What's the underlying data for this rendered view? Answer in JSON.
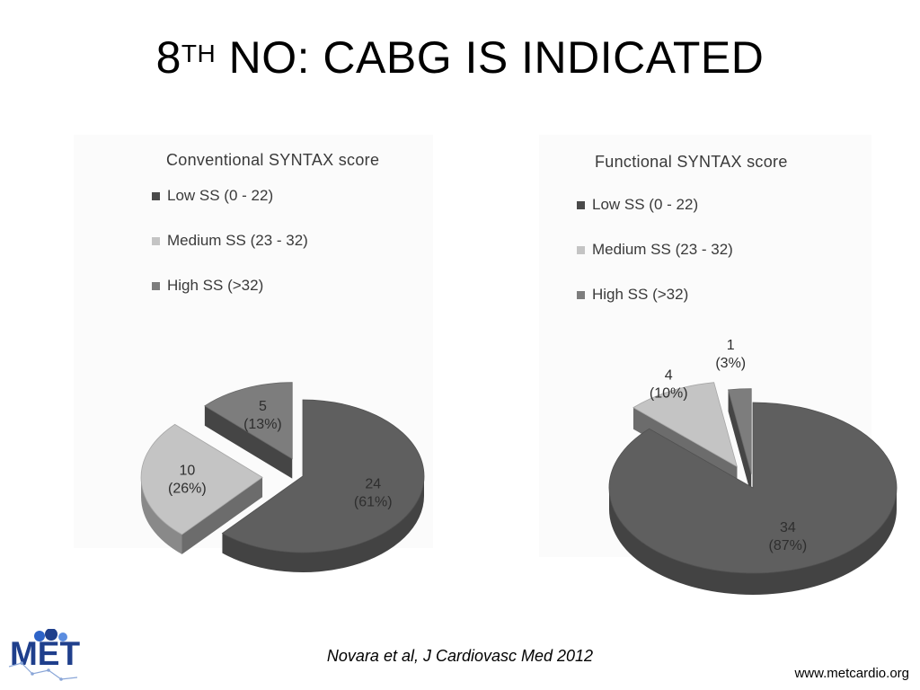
{
  "slide": {
    "title_number": "8",
    "title_superscript": "TH",
    "title_rest": " NO: CABG IS INDICATED",
    "citation": "Novara et al, J Cardiovasc Med 2012",
    "website": "www.metcardio.org",
    "logo_text": "MET"
  },
  "chart_data": [
    {
      "type": "pie",
      "title": "Conventional SYNTAX score",
      "categories": [
        "Low SS (0 -  22)",
        "Medium SS (23 -  32)",
        "High SS (>32)"
      ],
      "values": [
        24,
        10,
        5
      ],
      "labels": [
        [
          "24",
          "(61%)"
        ],
        [
          "10",
          "(26%)"
        ],
        [
          "5",
          "(13%)"
        ]
      ],
      "colors": [
        "#5f5f5f",
        "#c4c4c4",
        "#7d7d7d"
      ],
      "legend_position": "top-left"
    },
    {
      "type": "pie",
      "title": "Functional SYNTAX score",
      "categories": [
        "Low SS (0 -  22)",
        "Medium SS (23 -  32)",
        "High SS (>32)"
      ],
      "values": [
        34,
        4,
        1
      ],
      "labels": [
        [
          "34",
          "(87%)"
        ],
        [
          "4",
          "(10%)"
        ],
        [
          "1",
          "(3%)"
        ]
      ],
      "colors": [
        "#5f5f5f",
        "#c4c4c4",
        "#7d7d7d"
      ],
      "legend_position": "top-left"
    }
  ]
}
